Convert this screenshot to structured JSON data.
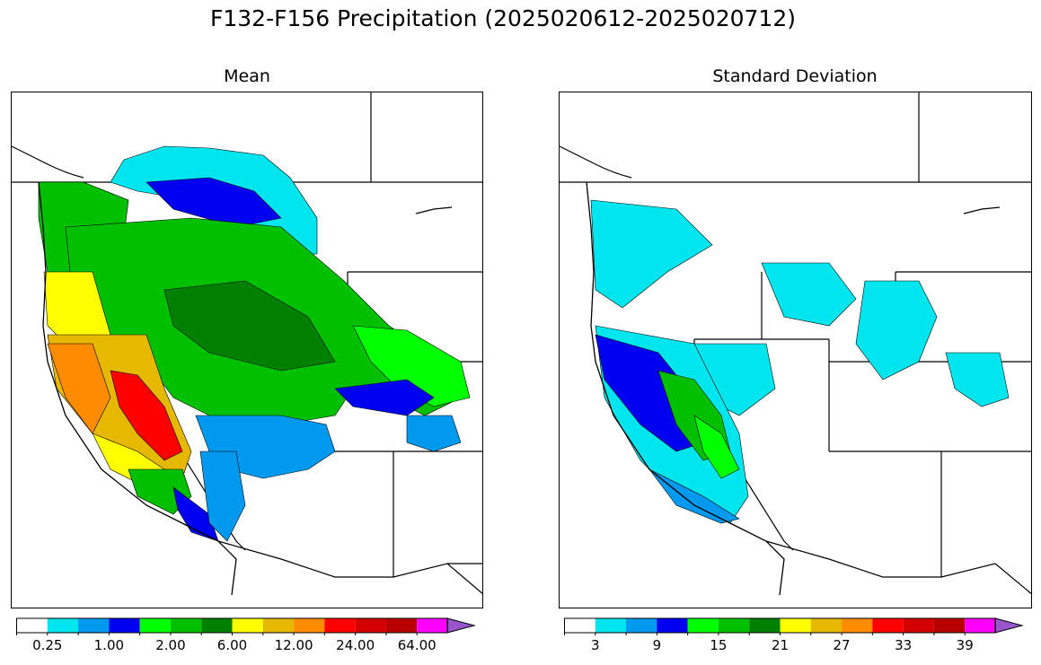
{
  "title": "F132-F156 Precipitation (2025020612-2025020712)",
  "panels": [
    {
      "title": "Mean"
    },
    {
      "title": "Standard Deviation"
    }
  ],
  "colors": [
    "#ffffff",
    "#00e5ee",
    "#0099f0",
    "#0000f0",
    "#00ff00",
    "#00c000",
    "#008000",
    "#ffff00",
    "#e6b800",
    "#ff8c00",
    "#ff0000",
    "#d40000",
    "#b80000",
    "#ff00ff",
    "#9955cc"
  ],
  "mean_colorbar": {
    "tick_labels": [
      "0.25",
      "1.00",
      "2.00",
      "6.00",
      "12.00",
      "24.00",
      "64.00"
    ]
  },
  "std_colorbar": {
    "tick_labels": [
      "3",
      "9",
      "15",
      "21",
      "27",
      "33",
      "39"
    ]
  }
}
